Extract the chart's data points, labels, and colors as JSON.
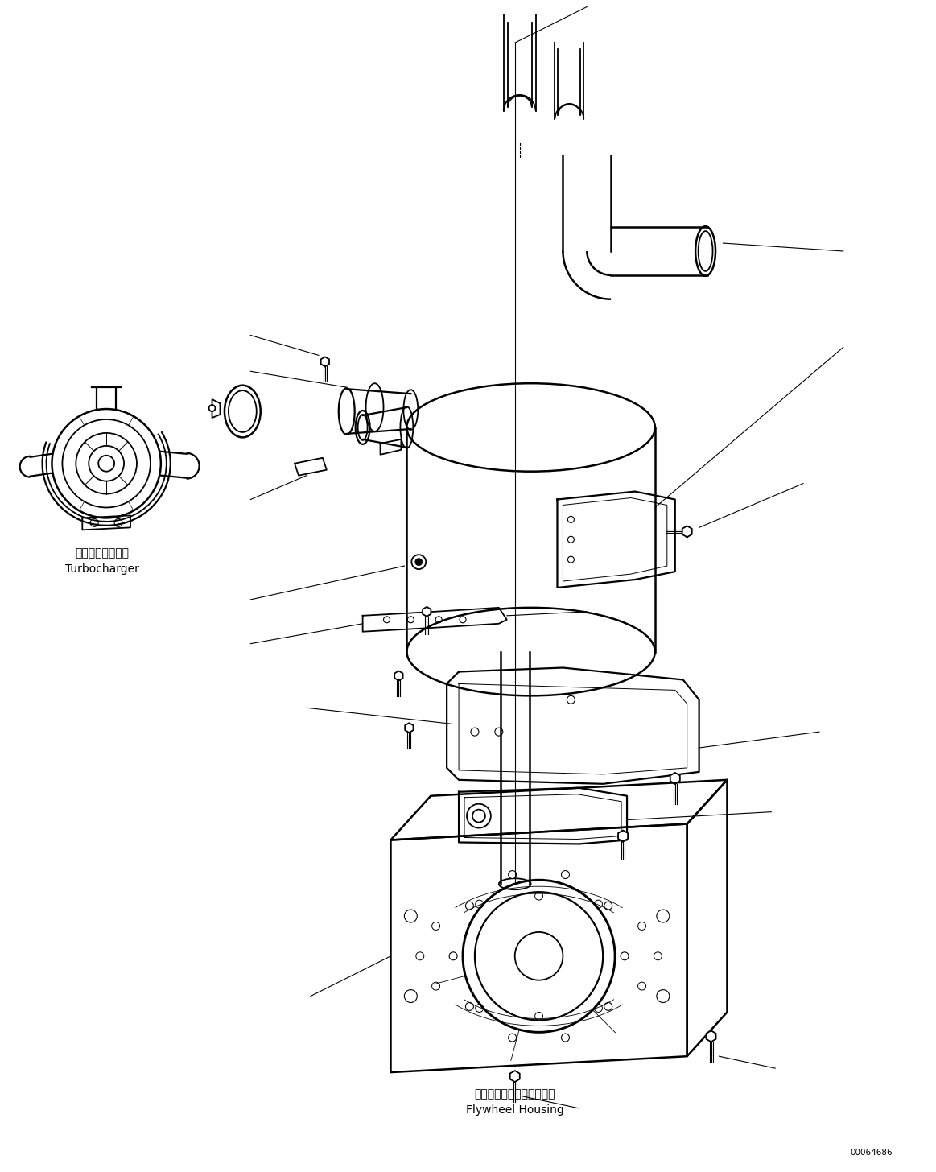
{
  "bg_color": "#ffffff",
  "line_color": "#000000",
  "fig_width": 11.63,
  "fig_height": 14.56,
  "label_turbocharger_jp": "ターボチャージャ",
  "label_turbocharger_en": "Turbocharger",
  "label_flywheel_jp": "フライホイールハウジング",
  "label_flywheel_en": "Flywheel Housing",
  "code": "00064686",
  "lw": 1.3,
  "font_size_label": 10,
  "font_size_code": 7.5
}
